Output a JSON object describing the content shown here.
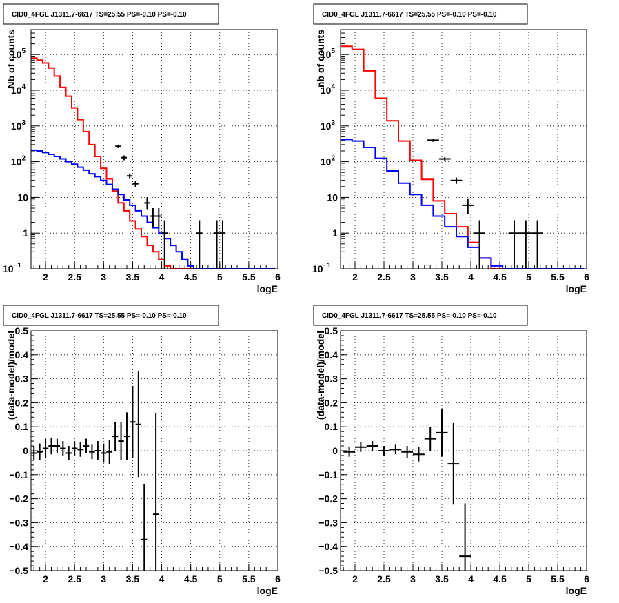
{
  "chart_data": [
    {
      "type": "histogram",
      "title": "CID0_4FGL J1311.7-6617 TS=25.55 PS=-0.10 PS=-0.10",
      "xlabel": "logE",
      "ylabel": "Nb of counts",
      "log_y": true,
      "xlim": [
        1.75,
        6.0
      ],
      "ylim": [
        0.1,
        500000
      ],
      "grid": true,
      "x_ticks": [
        "2",
        "2.5",
        "3",
        "3.5",
        "4",
        "4.5",
        "5",
        "5.5",
        "6"
      ],
      "y_ticks": [
        {
          "value": 0.1,
          "base": "10",
          "exp": "−1"
        },
        {
          "value": 1,
          "label": "1"
        },
        {
          "value": 10,
          "label": "10"
        },
        {
          "value": 100,
          "base": "10",
          "exp": "2"
        },
        {
          "value": 1000,
          "base": "10",
          "exp": "3"
        },
        {
          "value": 10000,
          "base": "10",
          "exp": "4"
        },
        {
          "value": 100000,
          "base": "10",
          "exp": "5"
        }
      ],
      "bin_edges_start": 1.75,
      "bin_width": 0.1,
      "series": [
        {
          "color": "#ff0000",
          "values": [
            80000,
            70000,
            58000,
            42000,
            25000,
            12000,
            6800,
            3200,
            1500,
            700,
            300,
            140,
            65,
            33,
            15,
            7,
            4.2,
            2.2,
            1.3,
            0.8,
            0.45,
            0.3,
            0.18,
            0.12,
            0.1,
            0.1,
            0.1,
            0.1,
            0.1,
            0.1,
            0.1,
            0.1,
            0.1,
            0.1,
            0.1,
            0.1,
            0.1,
            0.1,
            0.1,
            0.1,
            0.1,
            0.1
          ]
        },
        {
          "color": "#0000ff",
          "values": [
            210,
            200,
            180,
            160,
            140,
            120,
            100,
            85,
            70,
            58,
            46,
            38,
            30,
            23,
            17,
            12,
            8.5,
            6,
            4.2,
            3,
            2,
            1.4,
            1,
            0.7,
            0.45,
            0.3,
            0.18,
            0.12,
            0.1,
            0.1,
            0.1,
            0.1,
            0.1,
            0.1,
            0.1,
            0.1,
            0.1,
            0.1,
            0.1,
            0.1,
            0.1,
            0.1
          ]
        }
      ],
      "points": [
        {
          "x": 3.25,
          "y": 270,
          "xerr": 0.05,
          "lo": 240,
          "hi": 300
        },
        {
          "x": 3.35,
          "y": 130,
          "xerr": 0.05,
          "lo": 110,
          "hi": 150
        },
        {
          "x": 3.45,
          "y": 40,
          "xerr": 0.05,
          "lo": 33,
          "hi": 47
        },
        {
          "x": 3.55,
          "y": 24,
          "xerr": 0.05,
          "lo": 19,
          "hi": 29
        },
        {
          "x": 3.75,
          "y": 7,
          "xerr": 0.05,
          "lo": 4.5,
          "hi": 10
        },
        {
          "x": 3.85,
          "y": 3,
          "xerr": 0.05,
          "lo": 1.5,
          "hi": 5
        },
        {
          "x": 3.95,
          "y": 3,
          "xerr": 0.05,
          "lo": 1.5,
          "hi": 5
        },
        {
          "x": 4.05,
          "y": 1,
          "xerr": 0.05,
          "lo": 0.1,
          "hi": 2.3
        },
        {
          "x": 4.65,
          "y": 1,
          "xerr": 0.05,
          "lo": 0.1,
          "hi": 2.3
        },
        {
          "x": 4.95,
          "y": 1,
          "xerr": 0.05,
          "lo": 0.1,
          "hi": 2.3
        },
        {
          "x": 5.05,
          "y": 1,
          "xerr": 0.05,
          "lo": 0.1,
          "hi": 2.3
        }
      ]
    },
    {
      "type": "histogram",
      "title": "CID0_4FGL J1311.7-6617 TS=25.55 PS=-0.10 PS=-0.10",
      "xlabel": "logE",
      "ylabel": "nb of counts",
      "log_y": true,
      "xlim": [
        1.75,
        6.0
      ],
      "ylim": [
        0.1,
        500000
      ],
      "grid": true,
      "x_ticks": [
        "2",
        "2.5",
        "3",
        "3.5",
        "4",
        "4.5",
        "5",
        "5.5",
        "6"
      ],
      "y_ticks": [
        {
          "value": 0.1,
          "base": "10",
          "exp": "−1"
        },
        {
          "value": 1,
          "label": "1"
        },
        {
          "value": 10,
          "label": "10"
        },
        {
          "value": 100,
          "base": "10",
          "exp": "2"
        },
        {
          "value": 1000,
          "base": "10",
          "exp": "3"
        },
        {
          "value": 10000,
          "base": "10",
          "exp": "4"
        },
        {
          "value": 100000,
          "base": "10",
          "exp": "5"
        }
      ],
      "bin_edges_start": 1.75,
      "bin_width": 0.2,
      "series": [
        {
          "color": "#ff0000",
          "values": [
            170000,
            140000,
            35000,
            6000,
            1400,
            380,
            110,
            32,
            8,
            3.5,
            1.5,
            0.55,
            0.2,
            0.1,
            0.1,
            0.1,
            0.1,
            0.1,
            0.1,
            0.1,
            0.1
          ]
        },
        {
          "color": "#0000ff",
          "values": [
            420,
            380,
            250,
            125,
            55,
            25,
            12,
            6,
            3,
            1.5,
            0.8,
            0.4,
            0.2,
            0.12,
            0.1,
            0.1,
            0.1,
            0.1,
            0.1,
            0.1,
            0.1
          ]
        }
      ],
      "points": [
        {
          "x": 3.35,
          "y": 400,
          "xerr": 0.1,
          "lo": 360,
          "hi": 440
        },
        {
          "x": 3.55,
          "y": 120,
          "xerr": 0.1,
          "lo": 105,
          "hi": 135
        },
        {
          "x": 3.75,
          "y": 30,
          "xerr": 0.1,
          "lo": 24,
          "hi": 36
        },
        {
          "x": 3.95,
          "y": 6,
          "xerr": 0.1,
          "lo": 3.5,
          "hi": 9
        },
        {
          "x": 4.15,
          "y": 1,
          "xerr": 0.1,
          "lo": 0.1,
          "hi": 2.3
        },
        {
          "x": 4.75,
          "y": 1,
          "xerr": 0.1,
          "lo": 0.1,
          "hi": 2.3
        },
        {
          "x": 4.95,
          "y": 1,
          "xerr": 0.1,
          "lo": 0.1,
          "hi": 2.3
        },
        {
          "x": 5.15,
          "y": 1,
          "xerr": 0.1,
          "lo": 0.1,
          "hi": 2.3
        }
      ]
    },
    {
      "type": "scatter",
      "title": "CID0_4FGL J1311.7-6617 TS=25.55 PS=-0.10 PS=-0.10",
      "xlabel": "logE",
      "ylabel": "(data-model)/model",
      "log_y": false,
      "xlim": [
        1.75,
        6.0
      ],
      "ylim": [
        -0.5,
        0.5
      ],
      "grid": true,
      "x_ticks": [
        "2",
        "2.5",
        "3",
        "3.5",
        "4",
        "4.5",
        "5",
        "5.5",
        "6"
      ],
      "y_ticks": [
        "0.5",
        "0.4",
        "0.3",
        "0.2",
        "0.1",
        "0",
        "−0.1",
        "−0.2",
        "−0.3",
        "−0.4",
        "−0.5"
      ],
      "y_tick_values": [
        0.5,
        0.4,
        0.3,
        0.2,
        0.1,
        0,
        -0.1,
        -0.2,
        -0.3,
        -0.4,
        -0.5
      ],
      "points": [
        {
          "x": 1.8,
          "y": -0.01,
          "xerr": 0.05,
          "yerr": 0.03
        },
        {
          "x": 1.9,
          "y": -0.005,
          "xerr": 0.05,
          "yerr": 0.035
        },
        {
          "x": 2.0,
          "y": 0.01,
          "xerr": 0.05,
          "yerr": 0.04
        },
        {
          "x": 2.1,
          "y": 0.02,
          "xerr": 0.05,
          "yerr": 0.035
        },
        {
          "x": 2.2,
          "y": 0.02,
          "xerr": 0.05,
          "yerr": 0.03
        },
        {
          "x": 2.3,
          "y": 0.01,
          "xerr": 0.05,
          "yerr": 0.03
        },
        {
          "x": 2.4,
          "y": -0.01,
          "xerr": 0.05,
          "yerr": 0.03
        },
        {
          "x": 2.5,
          "y": 0.01,
          "xerr": 0.05,
          "yerr": 0.03
        },
        {
          "x": 2.6,
          "y": 0.005,
          "xerr": 0.05,
          "yerr": 0.03
        },
        {
          "x": 2.7,
          "y": 0.02,
          "xerr": 0.05,
          "yerr": 0.03
        },
        {
          "x": 2.8,
          "y": -0.005,
          "xerr": 0.05,
          "yerr": 0.03
        },
        {
          "x": 2.9,
          "y": 0.0,
          "xerr": 0.05,
          "yerr": 0.04
        },
        {
          "x": 3.0,
          "y": -0.01,
          "xerr": 0.05,
          "yerr": 0.04
        },
        {
          "x": 3.1,
          "y": -0.005,
          "xerr": 0.05,
          "yerr": 0.05
        },
        {
          "x": 3.2,
          "y": 0.06,
          "xerr": 0.05,
          "yerr": 0.06
        },
        {
          "x": 3.3,
          "y": 0.04,
          "xerr": 0.05,
          "yerr": 0.08
        },
        {
          "x": 3.4,
          "y": 0.06,
          "xerr": 0.05,
          "yerr": 0.1
        },
        {
          "x": 3.5,
          "y": 0.12,
          "xerr": 0.05,
          "yerr": 0.15
        },
        {
          "x": 3.6,
          "y": 0.11,
          "xerr": 0.05,
          "yerr": 0.22
        },
        {
          "x": 3.7,
          "y": -0.37,
          "xerr": 0.05,
          "yerr": 0.23
        },
        {
          "x": 3.9,
          "y": -0.265,
          "xerr": 0.05,
          "yerr": 0.42
        }
      ]
    },
    {
      "type": "scatter",
      "title": "CID0_4FGL J1311.7-6617 TS=25.55 PS=-0.10 PS=-0.10",
      "xlabel": "logE",
      "ylabel": "(data-model)/model",
      "log_y": false,
      "xlim": [
        1.75,
        6.0
      ],
      "ylim": [
        -0.5,
        0.5
      ],
      "grid": true,
      "x_ticks": [
        "2",
        "2.5",
        "3",
        "3.5",
        "4",
        "4.5",
        "5",
        "5.5",
        "6"
      ],
      "y_ticks": [
        "0.5",
        "0.4",
        "0.3",
        "0.2",
        "0.1",
        "0",
        "−0.1",
        "−0.2",
        "−0.3",
        "−0.4",
        "−0.5"
      ],
      "y_tick_values": [
        0.5,
        0.4,
        0.3,
        0.2,
        0.1,
        0,
        -0.1,
        -0.2,
        -0.3,
        -0.4,
        -0.5
      ],
      "points": [
        {
          "x": 1.9,
          "y": -0.005,
          "xerr": 0.1,
          "yerr": 0.02
        },
        {
          "x": 2.1,
          "y": 0.015,
          "xerr": 0.1,
          "yerr": 0.02
        },
        {
          "x": 2.3,
          "y": 0.02,
          "xerr": 0.1,
          "yerr": 0.02
        },
        {
          "x": 2.5,
          "y": 0.0,
          "xerr": 0.1,
          "yerr": 0.02
        },
        {
          "x": 2.7,
          "y": 0.005,
          "xerr": 0.1,
          "yerr": 0.02
        },
        {
          "x": 2.9,
          "y": -0.005,
          "xerr": 0.1,
          "yerr": 0.025
        },
        {
          "x": 3.1,
          "y": -0.015,
          "xerr": 0.1,
          "yerr": 0.03
        },
        {
          "x": 3.3,
          "y": 0.05,
          "xerr": 0.1,
          "yerr": 0.05
        },
        {
          "x": 3.5,
          "y": 0.075,
          "xerr": 0.1,
          "yerr": 0.1
        },
        {
          "x": 3.7,
          "y": -0.055,
          "xerr": 0.1,
          "yerr": 0.17
        },
        {
          "x": 3.9,
          "y": -0.44,
          "xerr": 0.1,
          "yerr": 0.22
        }
      ]
    }
  ]
}
